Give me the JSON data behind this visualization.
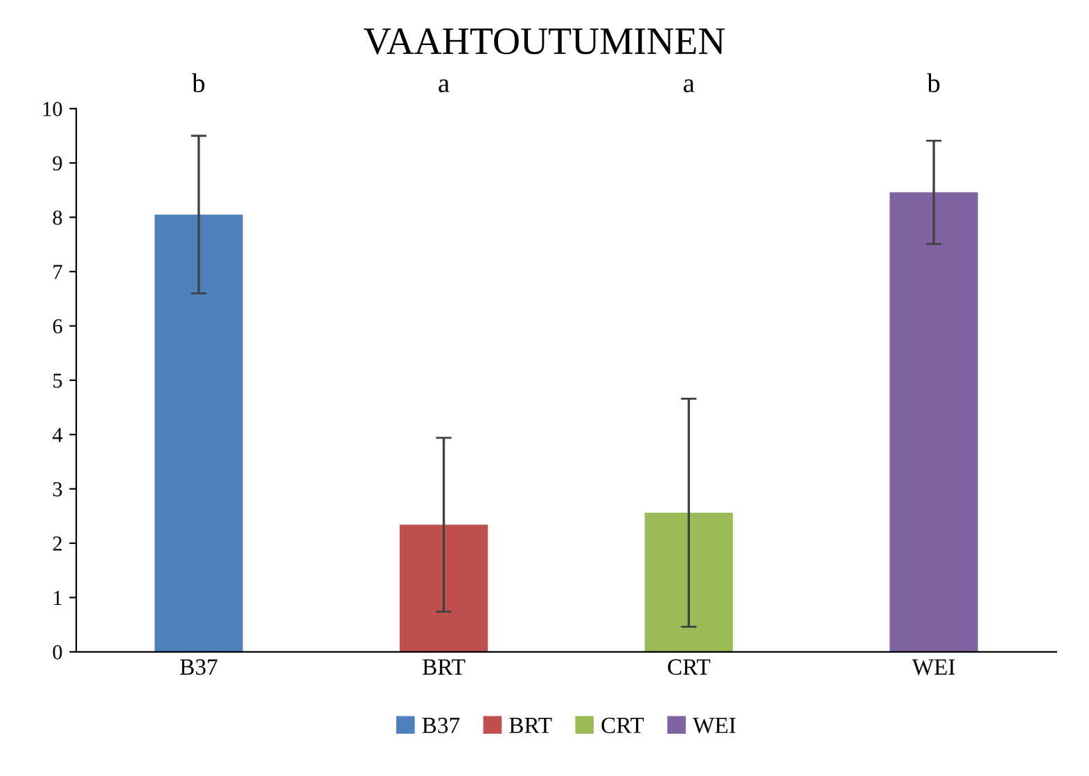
{
  "chart_data": {
    "type": "bar",
    "title": "VAAHTOUTUMINEN",
    "categories": [
      "B37",
      "BRT",
      "CRT",
      "WEI"
    ],
    "series": [
      {
        "name": "B37",
        "color": "#4f81bd",
        "values": [
          8.05,
          null,
          null,
          null
        ],
        "errors": [
          1.45,
          null,
          null,
          null
        ]
      },
      {
        "name": "BRT",
        "color": "#c0504d",
        "values": [
          null,
          2.34,
          null,
          null
        ],
        "errors": [
          null,
          1.6,
          null,
          null
        ]
      },
      {
        "name": "CRT",
        "color": "#9bbb59",
        "values": [
          null,
          null,
          2.56,
          null
        ],
        "errors": [
          null,
          null,
          2.1,
          null
        ]
      },
      {
        "name": "WEI",
        "color": "#8064a2",
        "values": [
          null,
          null,
          null,
          8.46
        ],
        "errors": [
          null,
          null,
          null,
          0.95
        ]
      }
    ],
    "ylim": [
      0,
      10
    ],
    "yticks": [
      0,
      1,
      2,
      3,
      4,
      5,
      6,
      7,
      8,
      9,
      10
    ],
    "annotations": [
      "b",
      "a",
      "a",
      "b"
    ],
    "grid": false,
    "legend": "bottom"
  }
}
